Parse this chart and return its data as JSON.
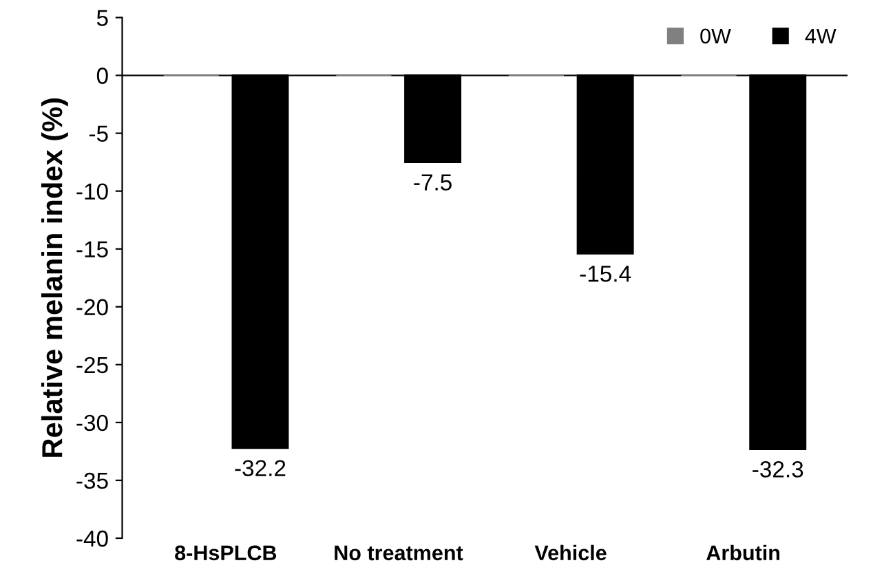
{
  "chart_data": {
    "type": "bar",
    "ylabel": "Relative melanin index (%)",
    "categories": [
      "8-HsPLCB",
      "No treatment",
      "Vehicle",
      "Arbutin"
    ],
    "series": [
      {
        "name": "0W",
        "color": "#808080",
        "values": [
          0,
          0,
          0,
          0
        ]
      },
      {
        "name": "4W",
        "color": "#000000",
        "values": [
          -32.2,
          -7.5,
          -15.4,
          -32.3
        ],
        "value_labels": [
          "-32.2",
          "-7.5",
          "-15.4",
          "-32.3"
        ]
      }
    ],
    "ylim": [
      -40,
      5
    ],
    "yticks": [
      -40,
      -35,
      -30,
      -25,
      -20,
      -15,
      -10,
      -5,
      0,
      5
    ],
    "legend": "top right"
  }
}
